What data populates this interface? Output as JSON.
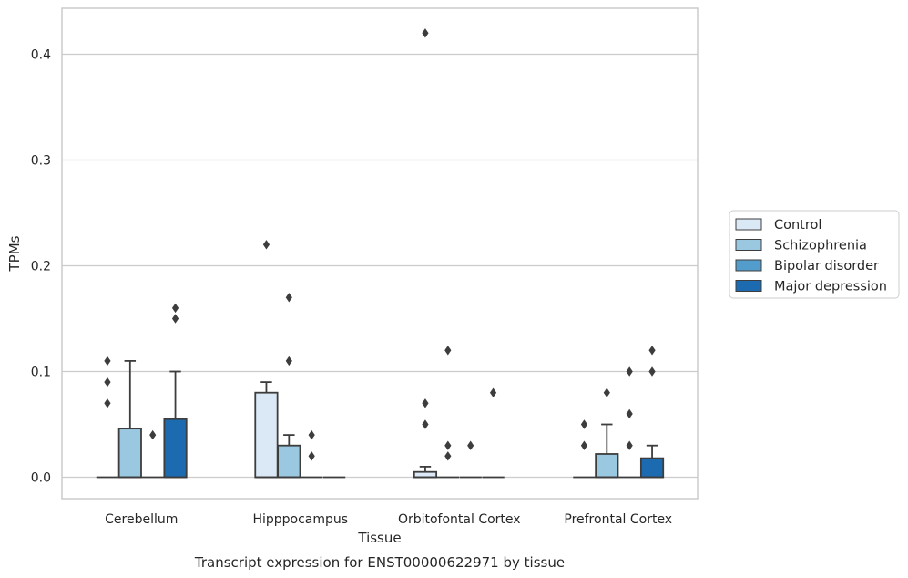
{
  "caption": "Transcript expression for ENST00000622971 by tissue",
  "chart_data": {
    "type": "box",
    "xlabel": "Tissue",
    "ylabel": "TPMs",
    "ylim": [
      -0.02,
      0.44
    ],
    "yticks": [
      0.0,
      0.1,
      0.2,
      0.3,
      0.4
    ],
    "ytick_labels": [
      "0.0",
      "0.1",
      "0.2",
      "0.3",
      "0.4"
    ],
    "grid": "horizontal",
    "legend_position": "right",
    "categories": [
      "Cerebellum",
      "Hipppocampus",
      "Orbitofontal Cortex",
      "Prefrontal Cortex"
    ],
    "series": [
      {
        "name": "Control",
        "color": "#dbe9f6",
        "boxes": [
          {
            "q1": 0,
            "median": 0,
            "q3": 0,
            "whislo": 0,
            "whishi": 0,
            "fliers": [
              0.07,
              0.09,
              0.11
            ]
          },
          {
            "q1": 0,
            "median": 0,
            "q3": 0.08,
            "whislo": 0,
            "whishi": 0.09,
            "fliers": [
              0.22
            ]
          },
          {
            "q1": 0,
            "median": 0,
            "q3": 0.005,
            "whislo": 0,
            "whishi": 0.01,
            "fliers": [
              0.05,
              0.07,
              0.42
            ]
          },
          {
            "q1": 0,
            "median": 0,
            "q3": 0,
            "whislo": 0,
            "whishi": 0,
            "fliers": [
              0.03,
              0.05
            ]
          }
        ]
      },
      {
        "name": "Schizophrenia",
        "color": "#9ac8e0",
        "boxes": [
          {
            "q1": 0,
            "median": 0,
            "q3": 0.046,
            "whislo": 0,
            "whishi": 0.11,
            "fliers": []
          },
          {
            "q1": 0,
            "median": 0,
            "q3": 0.03,
            "whislo": 0,
            "whishi": 0.04,
            "fliers": [
              0.11,
              0.17
            ]
          },
          {
            "q1": 0,
            "median": 0,
            "q3": 0,
            "whislo": 0,
            "whishi": 0,
            "fliers": [
              0.02,
              0.03,
              0.12
            ]
          },
          {
            "q1": 0,
            "median": 0,
            "q3": 0.022,
            "whislo": 0,
            "whishi": 0.05,
            "fliers": [
              0.08
            ]
          }
        ]
      },
      {
        "name": "Bipolar disorder",
        "color": "#529dcc",
        "boxes": [
          {
            "q1": 0,
            "median": 0,
            "q3": 0,
            "whislo": 0,
            "whishi": 0,
            "fliers": [
              0.04
            ]
          },
          {
            "q1": 0,
            "median": 0,
            "q3": 0,
            "whislo": 0,
            "whishi": 0,
            "fliers": [
              0.02,
              0.04
            ]
          },
          {
            "q1": 0,
            "median": 0,
            "q3": 0,
            "whislo": 0,
            "whishi": 0,
            "fliers": [
              0.03
            ]
          },
          {
            "q1": 0,
            "median": 0,
            "q3": 0,
            "whislo": 0,
            "whishi": 0,
            "fliers": [
              0.03,
              0.06,
              0.1
            ]
          }
        ]
      },
      {
        "name": "Major depression",
        "color": "#1c6aaf",
        "boxes": [
          {
            "q1": 0,
            "median": 0,
            "q3": 0.055,
            "whislo": 0,
            "whishi": 0.1,
            "fliers": [
              0.15,
              0.16
            ]
          },
          {
            "q1": 0,
            "median": 0,
            "q3": 0,
            "whislo": 0,
            "whishi": 0,
            "fliers": []
          },
          {
            "q1": 0,
            "median": 0,
            "q3": 0,
            "whislo": 0,
            "whishi": 0,
            "fliers": [
              0.08
            ]
          },
          {
            "q1": 0,
            "median": 0,
            "q3": 0.018,
            "whislo": 0,
            "whishi": 0.03,
            "fliers": [
              0.1,
              0.12
            ]
          }
        ]
      }
    ]
  }
}
